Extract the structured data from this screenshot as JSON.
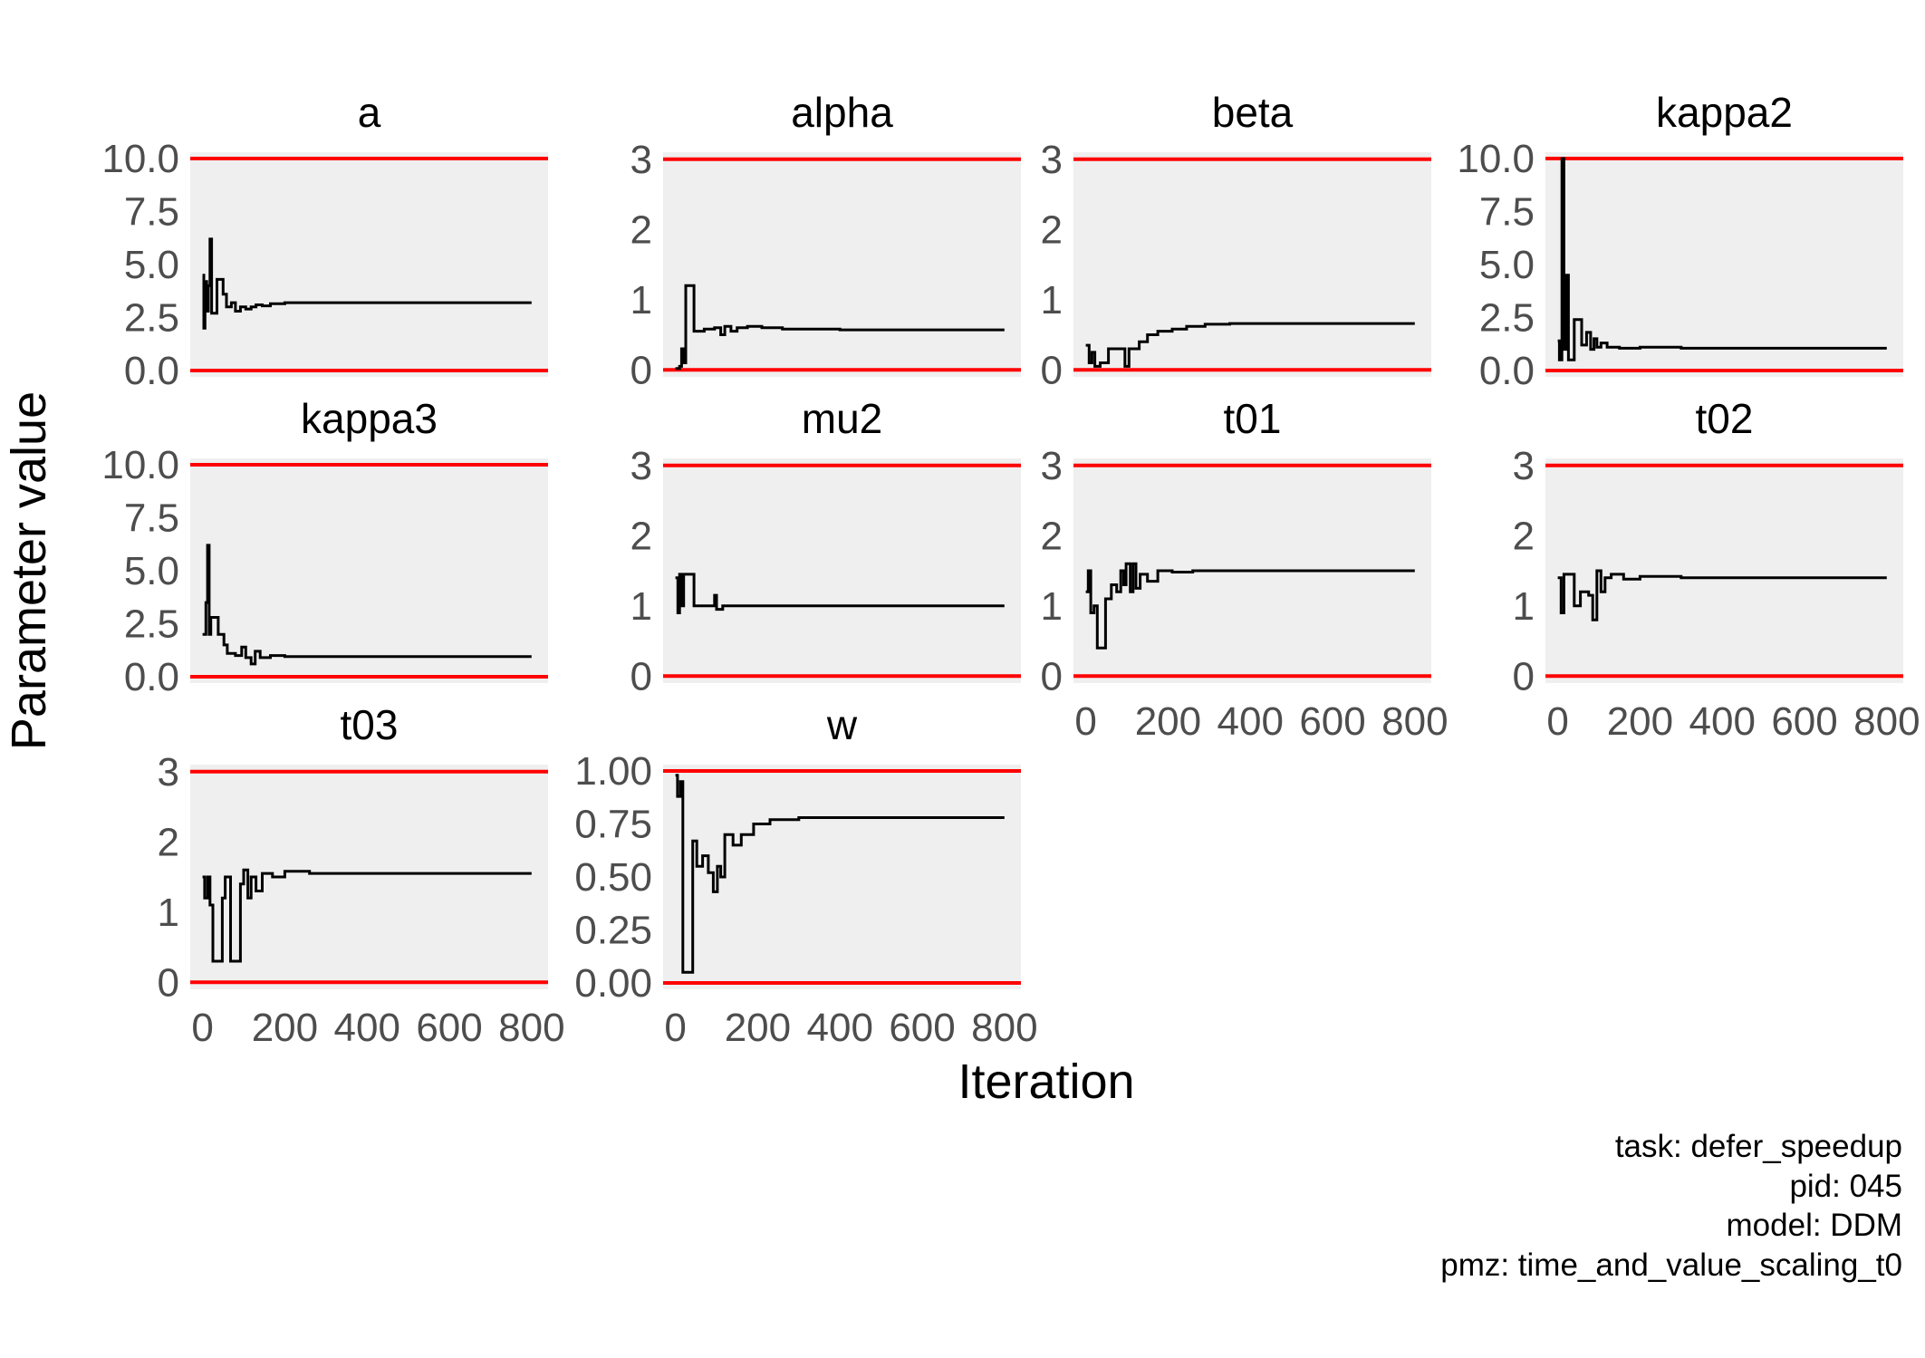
{
  "chart_data": {
    "type": "line",
    "ylabel": "Parameter value",
    "xlabel": "Iteration",
    "x_ticks": [
      0,
      200,
      400,
      600,
      800
    ],
    "xlim": [
      -30,
      840
    ],
    "bound_color": "#ff0000",
    "panel_bg": "#efefef",
    "line_color": "#000000",
    "caption": [
      "task: defer_speedup",
      "pid: 045",
      "model: DDM",
      "pmz: time_and_value_scaling_t0"
    ],
    "panels": [
      {
        "name": "a",
        "ylim": [
          -0.3,
          10.3
        ],
        "bounds": [
          0,
          10
        ],
        "ticks": [
          0,
          2.5,
          5,
          7.5,
          10
        ],
        "tick_labels": [
          "0.0",
          "2.5",
          "5.0",
          "7.5",
          "10.0"
        ],
        "show_x_ticks": false,
        "trace": [
          [
            0,
            4.5
          ],
          [
            3,
            2.0
          ],
          [
            6,
            4.2
          ],
          [
            10,
            2.8
          ],
          [
            14,
            4.0
          ],
          [
            18,
            6.2
          ],
          [
            22,
            2.7
          ],
          [
            35,
            4.3
          ],
          [
            50,
            3.6
          ],
          [
            58,
            3.0
          ],
          [
            70,
            3.2
          ],
          [
            80,
            2.8
          ],
          [
            92,
            3.0
          ],
          [
            105,
            2.9
          ],
          [
            118,
            3.0
          ],
          [
            130,
            3.1
          ],
          [
            145,
            3.05
          ],
          [
            165,
            3.15
          ],
          [
            200,
            3.2
          ],
          [
            250,
            3.2
          ],
          [
            400,
            3.2
          ],
          [
            600,
            3.2
          ],
          [
            800,
            3.2
          ]
        ]
      },
      {
        "name": "alpha",
        "ylim": [
          -0.1,
          3.1
        ],
        "bounds": [
          0,
          3
        ],
        "ticks": [
          0,
          1,
          2,
          3
        ],
        "tick_labels": [
          "0",
          "1",
          "2",
          "3"
        ],
        "show_x_ticks": false,
        "trace": [
          [
            0,
            0.02
          ],
          [
            10,
            0.05
          ],
          [
            15,
            0.3
          ],
          [
            20,
            0.1
          ],
          [
            25,
            1.2
          ],
          [
            45,
            0.55
          ],
          [
            70,
            0.58
          ],
          [
            95,
            0.6
          ],
          [
            110,
            0.5
          ],
          [
            120,
            0.62
          ],
          [
            135,
            0.55
          ],
          [
            150,
            0.6
          ],
          [
            175,
            0.62
          ],
          [
            210,
            0.6
          ],
          [
            260,
            0.58
          ],
          [
            400,
            0.57
          ],
          [
            600,
            0.57
          ],
          [
            800,
            0.57
          ]
        ]
      },
      {
        "name": "beta",
        "ylim": [
          -0.1,
          3.1
        ],
        "bounds": [
          0,
          3
        ],
        "ticks": [
          0,
          1,
          2,
          3
        ],
        "tick_labels": [
          "0",
          "1",
          "2",
          "3"
        ],
        "show_x_ticks": false,
        "trace": [
          [
            0,
            0.35
          ],
          [
            8,
            0.1
          ],
          [
            15,
            0.25
          ],
          [
            22,
            0.05
          ],
          [
            35,
            0.1
          ],
          [
            55,
            0.3
          ],
          [
            75,
            0.3
          ],
          [
            95,
            0.05
          ],
          [
            105,
            0.3
          ],
          [
            130,
            0.4
          ],
          [
            150,
            0.5
          ],
          [
            175,
            0.55
          ],
          [
            210,
            0.58
          ],
          [
            245,
            0.62
          ],
          [
            290,
            0.65
          ],
          [
            350,
            0.66
          ],
          [
            500,
            0.66
          ],
          [
            800,
            0.66
          ]
        ]
      },
      {
        "name": "kappa2",
        "ylim": [
          -0.3,
          10.3
        ],
        "bounds": [
          0,
          10
        ],
        "ticks": [
          0,
          2.5,
          5,
          7.5,
          10
        ],
        "tick_labels": [
          "0.0",
          "2.5",
          "5.0",
          "7.5",
          "10.0"
        ],
        "show_x_ticks": false,
        "trace": [
          [
            0,
            1.4
          ],
          [
            4,
            0.5
          ],
          [
            10,
            10
          ],
          [
            15,
            1.0
          ],
          [
            20,
            4.5
          ],
          [
            26,
            0.5
          ],
          [
            40,
            2.4
          ],
          [
            58,
            1.2
          ],
          [
            70,
            1.8
          ],
          [
            80,
            1.0
          ],
          [
            88,
            1.5
          ],
          [
            95,
            1.1
          ],
          [
            105,
            1.3
          ],
          [
            120,
            1.1
          ],
          [
            150,
            1.05
          ],
          [
            200,
            1.1
          ],
          [
            300,
            1.05
          ],
          [
            500,
            1.05
          ],
          [
            800,
            1.05
          ]
        ]
      },
      {
        "name": "kappa3",
        "ylim": [
          -0.3,
          10.3
        ],
        "bounds": [
          0,
          10
        ],
        "ticks": [
          0,
          2.5,
          5,
          7.5,
          10
        ],
        "tick_labels": [
          "0.0",
          "2.5",
          "5.0",
          "7.5",
          "10.0"
        ],
        "show_x_ticks": false,
        "trace": [
          [
            0,
            2.0
          ],
          [
            8,
            3.5
          ],
          [
            12,
            6.2
          ],
          [
            16,
            2.0
          ],
          [
            20,
            2.8
          ],
          [
            38,
            2.0
          ],
          [
            52,
            1.5
          ],
          [
            60,
            1.1
          ],
          [
            80,
            1.0
          ],
          [
            95,
            1.4
          ],
          [
            105,
            0.9
          ],
          [
            118,
            0.6
          ],
          [
            128,
            1.2
          ],
          [
            140,
            0.9
          ],
          [
            165,
            1.0
          ],
          [
            200,
            0.95
          ],
          [
            300,
            0.95
          ],
          [
            500,
            0.95
          ],
          [
            800,
            0.95
          ]
        ]
      },
      {
        "name": "mu2",
        "ylim": [
          -0.1,
          3.1
        ],
        "bounds": [
          0,
          3
        ],
        "ticks": [
          0,
          1,
          2,
          3
        ],
        "tick_labels": [
          "0",
          "1",
          "2",
          "3"
        ],
        "show_x_ticks": false,
        "trace": [
          [
            0,
            1.4
          ],
          [
            6,
            0.9
          ],
          [
            10,
            1.45
          ],
          [
            16,
            1.0
          ],
          [
            20,
            1.45
          ],
          [
            45,
            1.0
          ],
          [
            95,
            1.15
          ],
          [
            100,
            0.95
          ],
          [
            115,
            1.0
          ],
          [
            150,
            1.0
          ],
          [
            200,
            1.0
          ],
          [
            300,
            1.0
          ],
          [
            500,
            1.0
          ],
          [
            800,
            1.0
          ]
        ]
      },
      {
        "name": "t01",
        "ylim": [
          -0.1,
          3.1
        ],
        "bounds": [
          0,
          3
        ],
        "ticks": [
          0,
          1,
          2,
          3
        ],
        "tick_labels": [
          "0",
          "1",
          "2",
          "3"
        ],
        "show_x_ticks": true,
        "trace": [
          [
            0,
            1.2
          ],
          [
            6,
            1.5
          ],
          [
            12,
            0.9
          ],
          [
            20,
            1.0
          ],
          [
            28,
            0.4
          ],
          [
            48,
            1.1
          ],
          [
            62,
            1.3
          ],
          [
            75,
            1.2
          ],
          [
            85,
            1.5
          ],
          [
            92,
            1.3
          ],
          [
            98,
            1.6
          ],
          [
            108,
            1.2
          ],
          [
            115,
            1.6
          ],
          [
            122,
            1.25
          ],
          [
            132,
            1.45
          ],
          [
            150,
            1.35
          ],
          [
            175,
            1.5
          ],
          [
            210,
            1.48
          ],
          [
            260,
            1.5
          ],
          [
            400,
            1.5
          ],
          [
            600,
            1.5
          ],
          [
            800,
            1.5
          ]
        ]
      },
      {
        "name": "t02",
        "ylim": [
          -0.1,
          3.1
        ],
        "bounds": [
          0,
          3
        ],
        "ticks": [
          0,
          1,
          2,
          3
        ],
        "tick_labels": [
          "0",
          "1",
          "2",
          "3"
        ],
        "show_x_ticks": true,
        "trace": [
          [
            0,
            1.4
          ],
          [
            8,
            0.9
          ],
          [
            15,
            1.45
          ],
          [
            40,
            1.0
          ],
          [
            55,
            1.2
          ],
          [
            75,
            1.15
          ],
          [
            85,
            0.8
          ],
          [
            95,
            1.5
          ],
          [
            105,
            1.2
          ],
          [
            115,
            1.4
          ],
          [
            130,
            1.45
          ],
          [
            160,
            1.38
          ],
          [
            200,
            1.42
          ],
          [
            300,
            1.4
          ],
          [
            500,
            1.4
          ],
          [
            800,
            1.4
          ]
        ]
      },
      {
        "name": "t03",
        "ylim": [
          -0.1,
          3.1
        ],
        "bounds": [
          0,
          3
        ],
        "ticks": [
          0,
          1,
          2,
          3
        ],
        "tick_labels": [
          "0",
          "1",
          "2",
          "3"
        ],
        "show_x_ticks": true,
        "trace": [
          [
            0,
            1.5
          ],
          [
            5,
            1.2
          ],
          [
            12,
            1.5
          ],
          [
            18,
            1.1
          ],
          [
            25,
            0.3
          ],
          [
            48,
            1.2
          ],
          [
            55,
            1.5
          ],
          [
            68,
            0.3
          ],
          [
            92,
            1.4
          ],
          [
            100,
            1.6
          ],
          [
            110,
            1.2
          ],
          [
            118,
            1.5
          ],
          [
            130,
            1.3
          ],
          [
            145,
            1.55
          ],
          [
            170,
            1.5
          ],
          [
            200,
            1.58
          ],
          [
            260,
            1.55
          ],
          [
            400,
            1.55
          ],
          [
            600,
            1.55
          ],
          [
            800,
            1.55
          ]
        ]
      },
      {
        "name": "w",
        "ylim": [
          -0.03,
          1.03
        ],
        "bounds": [
          0,
          1
        ],
        "ticks": [
          0,
          0.25,
          0.5,
          0.75,
          1
        ],
        "tick_labels": [
          "0.00",
          "0.25",
          "0.50",
          "0.75",
          "1.00"
        ],
        "show_x_ticks": true,
        "trace": [
          [
            0,
            0.98
          ],
          [
            5,
            0.88
          ],
          [
            12,
            0.95
          ],
          [
            18,
            0.05
          ],
          [
            42,
            0.67
          ],
          [
            52,
            0.55
          ],
          [
            66,
            0.6
          ],
          [
            80,
            0.52
          ],
          [
            92,
            0.43
          ],
          [
            102,
            0.55
          ],
          [
            110,
            0.5
          ],
          [
            120,
            0.7
          ],
          [
            140,
            0.65
          ],
          [
            160,
            0.7
          ],
          [
            190,
            0.75
          ],
          [
            230,
            0.77
          ],
          [
            300,
            0.78
          ],
          [
            500,
            0.78
          ],
          [
            800,
            0.78
          ]
        ]
      }
    ]
  }
}
